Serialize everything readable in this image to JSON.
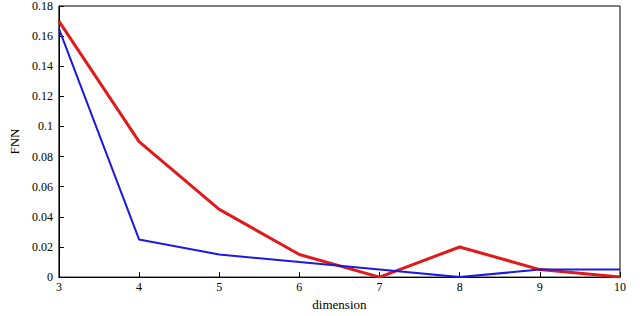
{
  "chart_data": {
    "type": "line",
    "x_label": "dimension",
    "y_label": "FNN",
    "x": [
      3,
      4,
      5,
      6,
      7,
      8,
      9,
      10
    ],
    "series": [
      {
        "color": "#e01a1a",
        "values": [
          0.17,
          0.09,
          0.045,
          0.015,
          0,
          0.02,
          0.005,
          0
        ]
      },
      {
        "color": "#1a1ae0",
        "values": [
          0.165,
          0.025,
          0.015,
          0.01,
          0.005,
          0,
          0.005,
          0.005
        ]
      }
    ],
    "xlim": [
      3,
      10
    ],
    "xticks": [
      3,
      4,
      5,
      6,
      7,
      8,
      9,
      10
    ],
    "ylim": [
      0,
      0.18
    ],
    "yticks": [
      0,
      0.02,
      0.04,
      0.06,
      0.08,
      0.1,
      0.12,
      0.14,
      0.16,
      0.18
    ],
    "grid": false
  }
}
